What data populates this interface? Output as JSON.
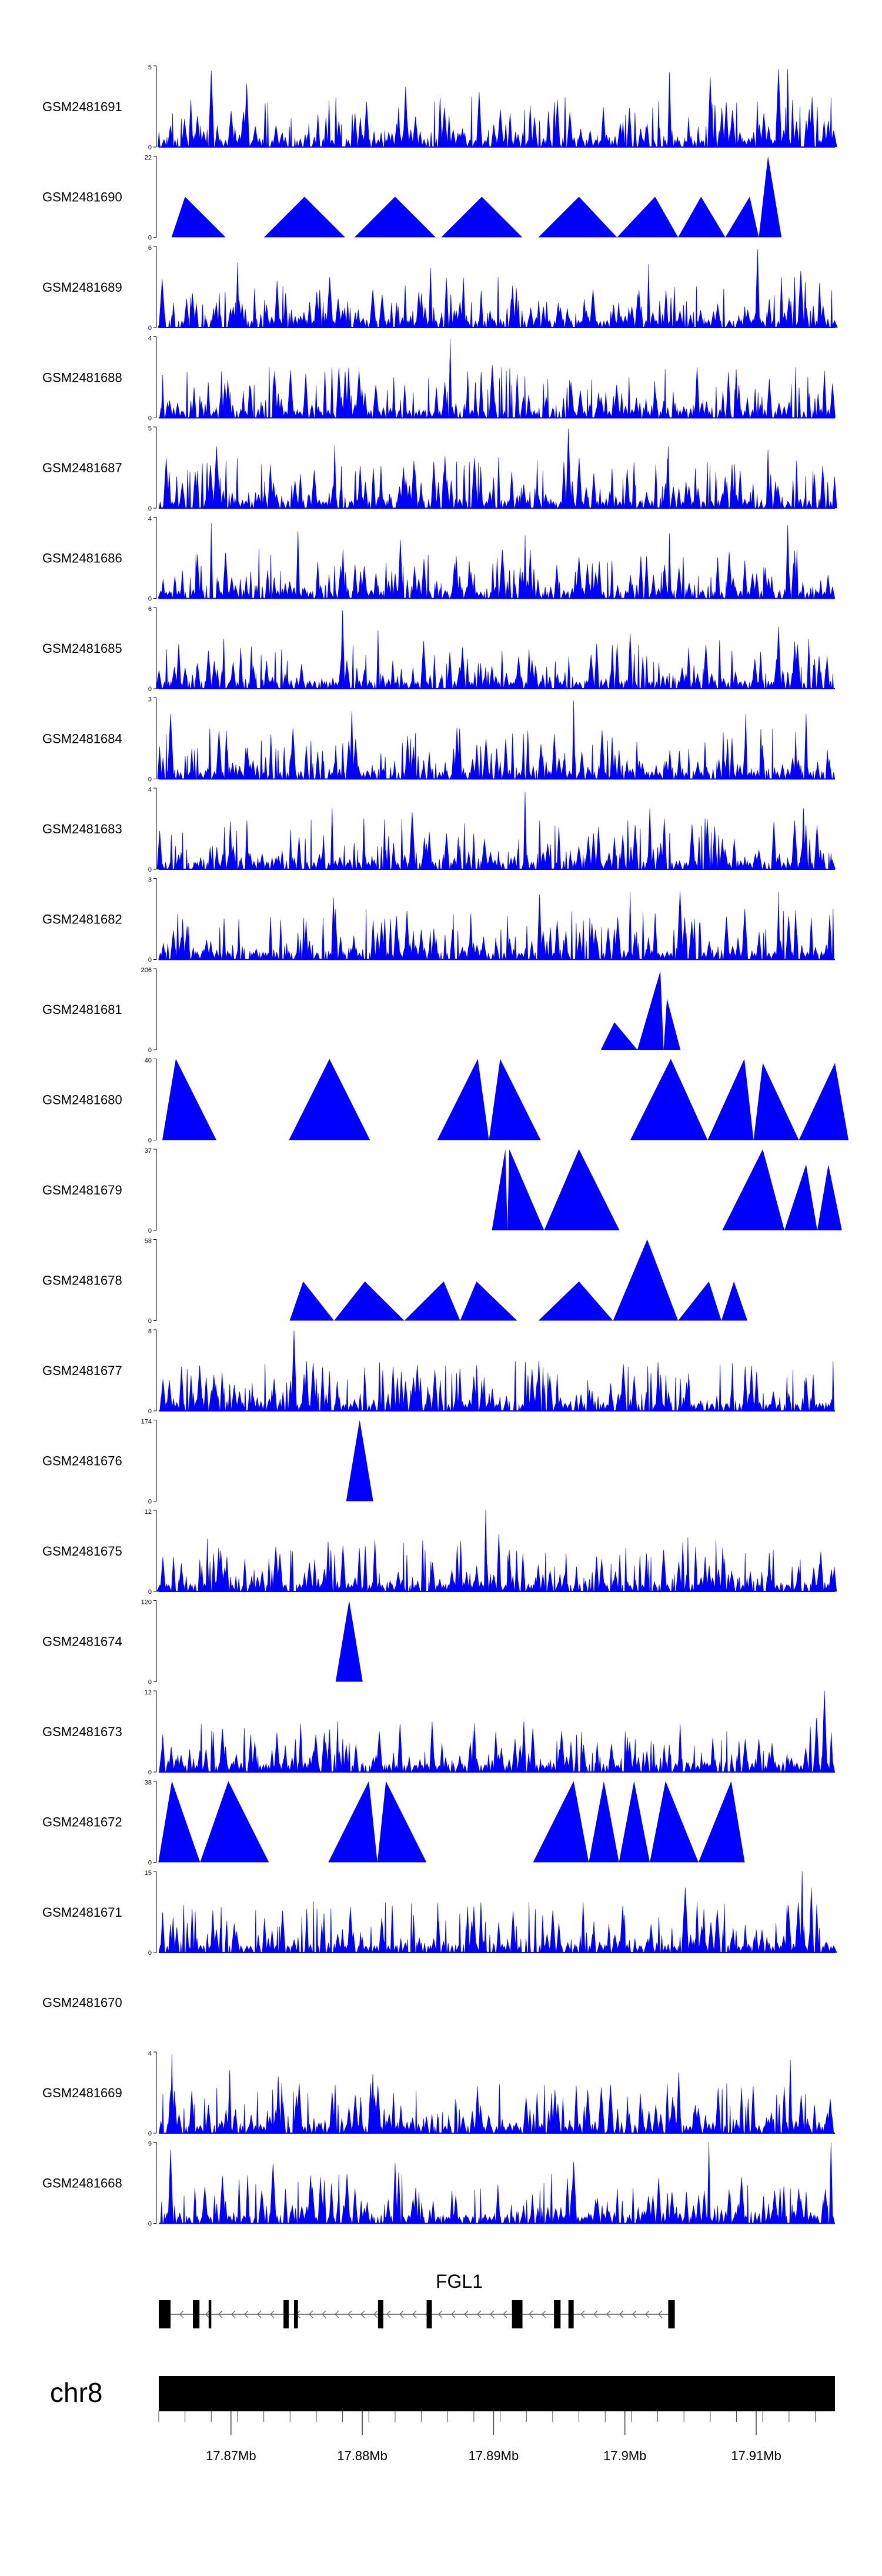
{
  "chart_data": {
    "type": "area",
    "title": "",
    "color": "#0000ff",
    "region": {
      "chromosome": "chr8",
      "start": 17.8645,
      "end": 17.916,
      "axis_ticks": [
        17.87,
        17.88,
        17.89,
        17.9,
        17.91
      ],
      "axis_tick_labels": [
        "17.87Mb",
        "17.88Mb",
        "17.89Mb",
        "17.9Mb",
        "17.91Mb"
      ]
    },
    "gene": {
      "name": "FGL1",
      "strand": "-",
      "exons": [
        [
          17.8645,
          17.8649
        ],
        [
          17.8648,
          17.8654
        ],
        [
          17.8671,
          17.8676
        ],
        [
          17.8683,
          17.8685
        ],
        [
          17.874,
          17.8744
        ],
        [
          17.8748,
          17.8751
        ],
        [
          17.8812,
          17.8816
        ],
        [
          17.8849,
          17.8853
        ],
        [
          17.8914,
          17.8922
        ],
        [
          17.8946,
          17.8951
        ],
        [
          17.8957,
          17.8961
        ],
        [
          17.9033,
          17.9038
        ]
      ]
    },
    "series": [
      {
        "name": "GSM2481691",
        "ymax": 5,
        "ylim": [
          0,
          5
        ],
        "profile": "dense",
        "empty": false,
        "peaks": [
          [
            17.8685,
            4.7
          ],
          [
            17.8712,
            3.9
          ],
          [
            17.8833,
            3.7
          ],
          [
            17.8889,
            3.4
          ],
          [
            17.9034,
            4.6
          ],
          [
            17.9065,
            4.3
          ],
          [
            17.9117,
            4.8
          ],
          [
            17.9124,
            4.8
          ]
        ]
      },
      {
        "name": "GSM2481690",
        "ymax": 22,
        "ylim": [
          0,
          22
        ],
        "profile": "triangles",
        "empty": false,
        "peaks": [
          [
            17.8665,
            11
          ],
          [
            17.8756,
            11
          ],
          [
            17.8825,
            11
          ],
          [
            17.8891,
            11
          ],
          [
            17.8965,
            11
          ],
          [
            17.9023,
            11
          ],
          [
            17.9058,
            11
          ],
          [
            17.9095,
            11
          ],
          [
            17.9109,
            22
          ]
        ]
      },
      {
        "name": "GSM2481689",
        "ymax": 6,
        "ylim": [
          0,
          6
        ],
        "profile": "dense",
        "empty": false,
        "peaks": [
          [
            17.8705,
            4.8
          ],
          [
            17.8852,
            4.4
          ],
          [
            17.9018,
            4.7
          ],
          [
            17.9101,
            5.8
          ],
          [
            17.9134,
            4.2
          ]
        ]
      },
      {
        "name": "GSM2481688",
        "ymax": 4,
        "ylim": [
          0,
          4
        ],
        "profile": "dense",
        "empty": false,
        "peaks": [
          [
            17.8648,
            2.1
          ],
          [
            17.8824,
            2.0
          ],
          [
            17.8867,
            3.9
          ],
          [
            17.8899,
            2.6
          ],
          [
            17.9055,
            2.5
          ],
          [
            17.9152,
            2.0
          ]
        ]
      },
      {
        "name": "GSM2481687",
        "ymax": 5,
        "ylim": [
          0,
          5
        ],
        "profile": "dense",
        "empty": false,
        "peaks": [
          [
            17.8689,
            3.8
          ],
          [
            17.8779,
            3.9
          ],
          [
            17.8863,
            3.2
          ],
          [
            17.8957,
            4.9
          ],
          [
            17.9033,
            3.8
          ],
          [
            17.9109,
            3.6
          ]
        ]
      },
      {
        "name": "GSM2481686",
        "ymax": 4,
        "ylim": [
          0,
          4
        ],
        "profile": "dense",
        "empty": false,
        "peaks": [
          [
            17.8685,
            3.7
          ],
          [
            17.8751,
            3.3
          ],
          [
            17.8829,
            2.9
          ],
          [
            17.8924,
            3.1
          ],
          [
            17.9034,
            3.2
          ],
          [
            17.9124,
            3.6
          ]
        ]
      },
      {
        "name": "GSM2481685",
        "ymax": 6,
        "ylim": [
          0,
          6
        ],
        "profile": "dense",
        "empty": false,
        "peaks": [
          [
            17.8785,
            5.8
          ],
          [
            17.8812,
            4.3
          ],
          [
            17.8927,
            2.9
          ],
          [
            17.9004,
            4.1
          ],
          [
            17.9117,
            4.6
          ]
        ]
      },
      {
        "name": "GSM2481684",
        "ymax": 3,
        "ylim": [
          0,
          3
        ],
        "profile": "dense",
        "empty": false,
        "peaks": [
          [
            17.8654,
            2.4
          ],
          [
            17.8792,
            2.5
          ],
          [
            17.8961,
            2.9
          ],
          [
            17.9092,
            2.4
          ],
          [
            17.9138,
            2.4
          ]
        ]
      },
      {
        "name": "GSM2481683",
        "ymax": 4,
        "ylim": [
          0,
          4
        ],
        "profile": "dense",
        "empty": false,
        "peaks": [
          [
            17.8777,
            3.0
          ],
          [
            17.8838,
            2.8
          ],
          [
            17.8924,
            3.8
          ],
          [
            17.9019,
            3.0
          ],
          [
            17.9136,
            3.0
          ]
        ]
      },
      {
        "name": "GSM2481682",
        "ymax": 3,
        "ylim": [
          0,
          3
        ],
        "profile": "dense",
        "empty": false,
        "peaks": [
          [
            17.8778,
            2.3
          ],
          [
            17.8935,
            2.4
          ],
          [
            17.9004,
            2.5
          ],
          [
            17.9042,
            2.5
          ],
          [
            17.9117,
            2.5
          ]
        ]
      },
      {
        "name": "GSM2481681",
        "ymax": 206,
        "ylim": [
          0,
          206
        ],
        "profile": "triangles",
        "empty": false,
        "peaks": [
          [
            17.8992,
            70
          ],
          [
            17.9027,
            200
          ],
          [
            17.9032,
            130
          ]
        ]
      },
      {
        "name": "GSM2481680",
        "ymax": 40,
        "ylim": [
          0,
          40
        ],
        "profile": "triangles",
        "empty": false,
        "peaks": [
          [
            17.8658,
            40
          ],
          [
            17.8775,
            40
          ],
          [
            17.8888,
            40
          ],
          [
            17.8905,
            40
          ],
          [
            17.9035,
            40
          ],
          [
            17.9091,
            40
          ],
          [
            17.9105,
            38
          ],
          [
            17.916,
            38
          ]
        ]
      },
      {
        "name": "GSM2481679",
        "ymax": 37,
        "ylim": [
          0,
          37
        ],
        "profile": "triangles",
        "empty": false,
        "peaks": [
          [
            17.8909,
            37
          ],
          [
            17.8912,
            37
          ],
          [
            17.8965,
            37
          ],
          [
            17.9105,
            37
          ],
          [
            17.9138,
            30
          ],
          [
            17.9155,
            30
          ]
        ]
      },
      {
        "name": "GSM2481678",
        "ymax": 58,
        "ylim": [
          0,
          58
        ],
        "profile": "triangles",
        "empty": false,
        "peaks": [
          [
            17.8755,
            28
          ],
          [
            17.8802,
            28
          ],
          [
            17.8862,
            28
          ],
          [
            17.8887,
            28
          ],
          [
            17.8965,
            28
          ],
          [
            17.9017,
            58
          ],
          [
            17.9064,
            28
          ],
          [
            17.9083,
            28
          ]
        ]
      },
      {
        "name": "GSM2481677",
        "ymax": 8,
        "ylim": [
          0,
          8
        ],
        "profile": "dense",
        "empty": false,
        "peaks": [
          [
            17.8748,
            7.9
          ],
          [
            17.8765,
            3.2
          ],
          [
            17.8891,
            3.0
          ],
          [
            17.9049,
            3.0
          ],
          [
            17.9137,
            3.0
          ]
        ]
      },
      {
        "name": "GSM2481676",
        "ymax": 174,
        "ylim": [
          0,
          174
        ],
        "profile": "triangles",
        "empty": false,
        "peaks": [
          [
            17.8798,
            174
          ]
        ]
      },
      {
        "name": "GSM2481675",
        "ymax": 12,
        "ylim": [
          0,
          12
        ],
        "profile": "dense",
        "empty": false,
        "peaks": [
          [
            17.8682,
            7.8
          ],
          [
            17.8875,
            7.5
          ],
          [
            17.8894,
            12
          ],
          [
            17.8904,
            8.5
          ],
          [
            17.9048,
            8.0
          ],
          [
            17.9113,
            6.2
          ]
        ]
      },
      {
        "name": "GSM2481674",
        "ymax": 120,
        "ylim": [
          0,
          120
        ],
        "profile": "triangles",
        "empty": false,
        "peaks": [
          [
            17.879,
            120
          ]
        ]
      },
      {
        "name": "GSM2481673",
        "ymax": 12,
        "ylim": [
          0,
          12
        ],
        "profile": "dense",
        "empty": false,
        "peaks": [
          [
            17.8715,
            5.5
          ],
          [
            17.8735,
            5.8
          ],
          [
            17.8771,
            5.8
          ],
          [
            17.8813,
            6.0
          ],
          [
            17.9146,
            8.0
          ],
          [
            17.9152,
            12
          ]
        ]
      },
      {
        "name": "GSM2481672",
        "ymax": 38,
        "ylim": [
          0,
          38
        ],
        "profile": "triangles",
        "empty": false,
        "peaks": [
          [
            17.8655,
            38
          ],
          [
            17.8698,
            38
          ],
          [
            17.8805,
            38
          ],
          [
            17.8818,
            38
          ],
          [
            17.8961,
            38
          ],
          [
            17.8984,
            38
          ],
          [
            17.9007,
            38
          ],
          [
            17.9031,
            38
          ],
          [
            17.9081,
            38
          ]
        ]
      },
      {
        "name": "GSM2481671",
        "ymax": 15,
        "ylim": [
          0,
          15
        ],
        "profile": "dense",
        "empty": false,
        "peaks": [
          [
            17.8885,
            8.5
          ],
          [
            17.9046,
            12.0
          ],
          [
            17.9135,
            15.0
          ],
          [
            17.9142,
            12.0
          ]
        ]
      },
      {
        "name": "GSM2481670",
        "ymax": null,
        "ylim": null,
        "profile": "dense",
        "empty": true,
        "peaks": []
      },
      {
        "name": "GSM2481669",
        "ymax": 4,
        "ylim": [
          0,
          4
        ],
        "profile": "dense",
        "empty": false,
        "peaks": [
          [
            17.8655,
            3.9
          ],
          [
            17.8699,
            3.1
          ],
          [
            17.8736,
            2.8
          ],
          [
            17.8808,
            2.9
          ],
          [
            17.9041,
            3.0
          ],
          [
            17.9126,
            3.6
          ]
        ]
      },
      {
        "name": "GSM2481668",
        "ymax": 9,
        "ylim": [
          0,
          9
        ],
        "profile": "dense",
        "empty": false,
        "peaks": [
          [
            17.8654,
            8.2
          ],
          [
            17.8732,
            6.6
          ],
          [
            17.8825,
            6.7
          ],
          [
            17.8961,
            6.8
          ],
          [
            17.9064,
            9.0
          ],
          [
            17.9157,
            8.9
          ]
        ]
      }
    ]
  }
}
